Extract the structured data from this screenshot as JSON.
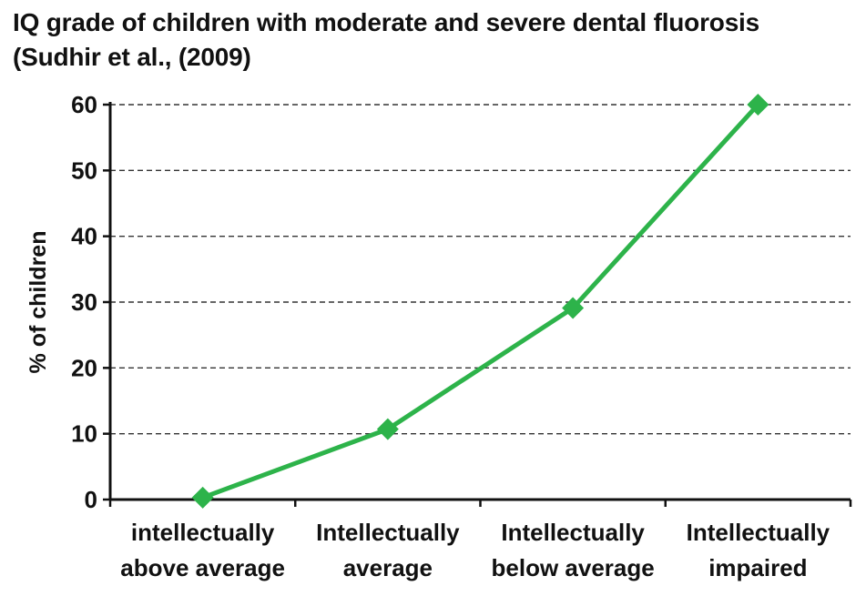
{
  "chart_data": {
    "type": "line",
    "title_line1": "IQ grade of children with moderate and severe dental fluorosis",
    "title_line2": "(Sudhir et al., (2009)",
    "xlabel": "",
    "ylabel": "% of children",
    "ylim": [
      0,
      60
    ],
    "yticks": [
      "0",
      "10",
      "20",
      "30",
      "40",
      "50",
      "60"
    ],
    "grid": "horizontal dashed",
    "categories": [
      [
        "intellectually",
        "above average"
      ],
      [
        "Intellectually",
        "average"
      ],
      [
        "Intellectually",
        "below average"
      ],
      [
        "Intellectually",
        "impaired"
      ]
    ],
    "series": [
      {
        "values": [
          0.3,
          10.7,
          29.1,
          60
        ],
        "color": "#2db34a",
        "marker": "diamond"
      }
    ]
  }
}
